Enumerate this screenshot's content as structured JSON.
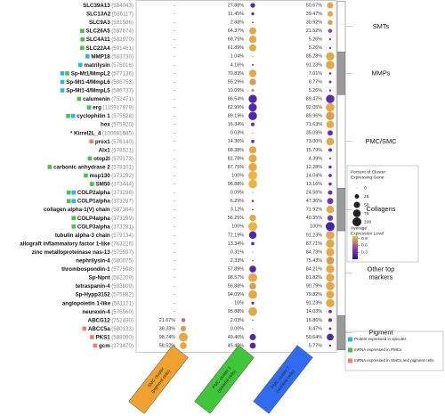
{
  "chart_data": {
    "type": "dotplot",
    "genes": [
      "SLC39A13",
      "SLC13A2",
      "SLC9A3",
      "SLC26A5",
      "SLC4A11",
      "SLC22A4",
      "MMP18",
      "matrilysin",
      "Sp-Mt1/MmpL2",
      "Sp-Mt1-4/MmpL6",
      "Sp-Mt1-4/MmpL5",
      "calumenin",
      "erg",
      "cyclophilin 1",
      "hex",
      "* Kirrel2L_4",
      "prox1",
      "Alx1",
      "otop2l",
      "carbonic anhydrase 2",
      "msp130",
      "SM50",
      "COLP2alpha",
      "COLP1alpha",
      "collagen alpha-1(V) chain",
      "COLP4alpha",
      "COLP3alpha",
      "tubulin alpha-3 chain",
      "allograft inflammatory factor 1-like",
      "zinc metalloproteinase nas-13",
      "nephrilysin-4",
      "thrombospondin-1",
      "Sp-Npnt",
      "tetraspanin-4",
      "Sp-Hypp3152",
      "angiopoietin 1-like",
      "neurexin-4",
      "ABCG12",
      "ABCC5a",
      "PKS1",
      "gcm"
    ],
    "gene_ids": [
      "(584043)",
      "(586117)",
      "(581586)",
      "(587674)",
      "(582970)",
      "(591461)",
      "(583730)",
      "(576016)",
      "(577136)",
      "(586753)",
      "(586737)",
      "(752471)",
      "(115917879)",
      "(575528)",
      "(575920)",
      "(100681685)",
      "(576140)",
      "(578521)",
      "(579173)",
      "(579101)",
      "(373292)",
      "(373444)",
      "(373298)",
      "(373287)",
      "(587384)",
      "(373299)",
      "(373281)",
      "(579134)",
      "(763226)",
      "(575597)",
      "(580075)",
      "(577598)",
      "(582209)",
      "(593809)",
      "(575882)",
      "(581121)",
      "(576560)",
      "(752490)",
      "(580133)",
      "(588090)",
      "(373470)"
    ],
    "row_tags": [
      [],
      [],
      [],
      [
        1
      ],
      [
        1
      ],
      [
        1
      ],
      [
        0
      ],
      [
        0
      ],
      [
        0,
        1
      ],
      [
        0
      ],
      [
        0
      ],
      [
        1
      ],
      [
        1
      ],
      [
        1,
        0
      ],
      [],
      [],
      [
        2
      ],
      [],
      [
        1
      ],
      [
        1
      ],
      [
        1
      ],
      [
        1
      ],
      [
        1,
        0
      ],
      [
        1,
        0
      ],
      [],
      [
        1
      ],
      [
        1
      ],
      [],
      [],
      [],
      [],
      [],
      [],
      [],
      [],
      [],
      [],
      [],
      [
        2
      ],
      [
        2
      ],
      [
        2
      ]
    ],
    "tag_legend": [
      {
        "name": "Protein expressed in spicules",
        "color": "#2bb5e6"
      },
      {
        "name": "mRNA expressed in PMCs",
        "color": "#4cbf4c"
      },
      {
        "name": "mRNA expressed in SMCs and pigment cells",
        "color": "#ef7f70"
      }
    ],
    "columns": [
      {
        "lines": [
          "SMC cluster",
          "(pigment cells)"
        ],
        "color": "#f0a22e",
        "values": [
          null,
          null,
          null,
          null,
          null,
          null,
          null,
          null,
          null,
          null,
          null,
          null,
          null,
          null,
          null,
          null,
          null,
          null,
          null,
          null,
          null,
          null,
          null,
          null,
          null,
          null,
          null,
          null,
          null,
          null,
          null,
          null,
          null,
          null,
          null,
          null,
          null,
          21.67,
          38.33,
          98.74,
          58.52
        ],
        "value_labels": [
          "-",
          "-",
          "-",
          "-",
          "-",
          "-",
          "-",
          "-",
          "-",
          "-",
          "-",
          "-",
          "-",
          "-",
          "-",
          "-",
          "-",
          "-",
          "-",
          "-",
          "-",
          "-",
          "-",
          "-",
          "-",
          "-",
          "-",
          "-",
          "-",
          "-",
          "-",
          "-",
          "-",
          "-",
          "-",
          "-",
          "-",
          "21.67%",
          "38.33%",
          "98.74%",
          "58.52%"
        ],
        "expression": [
          null,
          null,
          null,
          null,
          null,
          null,
          null,
          null,
          null,
          null,
          null,
          null,
          null,
          null,
          null,
          null,
          null,
          null,
          null,
          null,
          null,
          null,
          null,
          null,
          null,
          null,
          null,
          null,
          null,
          null,
          null,
          null,
          null,
          null,
          null,
          null,
          null,
          0.7,
          0.85,
          0.9,
          0.9
        ]
      },
      {
        "lines": [
          "PMC cluster 1",
          "(skeletal cells)"
        ],
        "color": "#3fc63a",
        "values": [
          27.88,
          11.45,
          2.88,
          64.37,
          68.75,
          61.89,
          1.04,
          4.16,
          70.83,
          55.29,
          10.09,
          86.54,
          82.99,
          89.19,
          16.34,
          0.03,
          14.3,
          68.38,
          81.78,
          87.75,
          100,
          96.88,
          0.09,
          6.29,
          3.12,
          56.25,
          100,
          72.19,
          13.34,
          0.31,
          2.33,
          57.89,
          98.57,
          56.88,
          94.09,
          10,
          95.88,
          2.03,
          0,
          49.4,
          45.4
        ],
        "value_labels": [
          "27.88%",
          "11.45%",
          "2.88%",
          "64.37%",
          "68.75%",
          "61.89%",
          "1.04%",
          "4.16%",
          "70.83%",
          "55.29%",
          "10.09%",
          "86.54%",
          "82.99%",
          "89.19%",
          "16.34%",
          "0.03%",
          "14.30%",
          "68.38%",
          "81.78%",
          "87.75%",
          "100%",
          "96.88%",
          "0.09%",
          "6.29%",
          "3.12%",
          "56.25%",
          "100%",
          "72.19%",
          "13.34%",
          "0.31%",
          "2.33%",
          "57.89%",
          "98.57%",
          "56.88%",
          "94.09%",
          "10%",
          "95.88%",
          "2.03%",
          "0.00%",
          "49.40%",
          "45.40%"
        ],
        "expression": [
          0.2,
          0.25,
          0.3,
          0.9,
          0.9,
          0.9,
          0.3,
          0.3,
          0.9,
          0.85,
          0.8,
          0.2,
          0.2,
          0.2,
          0.3,
          0.3,
          0.3,
          0.9,
          0.9,
          0.9,
          0.95,
          0.95,
          0.3,
          0.3,
          0.3,
          0.9,
          0.95,
          0.2,
          0.2,
          0.3,
          0.3,
          0.2,
          0.9,
          0.85,
          0.9,
          0.3,
          0.9,
          0.3,
          0.3,
          0.2,
          0.2
        ]
      },
      {
        "lines": [
          "PMC cluster 2",
          "(skeletal cells)"
        ],
        "color": "#2f6cf0",
        "values": [
          50.67,
          39.47,
          30.92,
          21.52,
          5.26,
          5.26,
          85.28,
          91.23,
          7.01,
          8.77,
          5.26,
          89.47,
          92.05,
          89.96,
          71.63,
          35.09,
          73.0,
          15.79,
          4.39,
          12.28,
          14.04,
          13.16,
          24.56,
          47.36,
          71.92,
          40.35,
          100,
          91.23,
          87.71,
          84.73,
          75.43,
          84.21,
          81.82,
          90.79,
          79.82,
          91.23,
          14.03,
          16.86,
          8.47,
          59.64,
          5.77
        ],
        "value_labels": [
          "50.67%",
          "39.47%",
          "30.92%",
          "21.52%",
          "5.26%",
          "5.26%",
          "85.28%",
          "91.23%",
          "7.01%",
          "8.77%",
          "5.26%",
          "89.47%",
          "92.05%",
          "89.96%",
          "71.63%",
          "35.09%",
          "73.00%",
          "15.79%",
          "4.39%",
          "12.28%",
          "14.04%",
          "13.16%",
          "24.56%",
          "47.36%",
          "71.92%",
          "40.35%",
          "100%",
          "91.23%",
          "87.71%",
          "84.73%",
          "75.43%",
          "84.21%",
          "81.82%",
          "90.79%",
          "79.82%",
          "91.23%",
          "14.03%",
          "16.86%",
          "8.47%",
          "59.64%",
          "5.77%"
        ],
        "expression": [
          0.9,
          0.9,
          0.85,
          0.5,
          0.3,
          0.3,
          0.9,
          0.9,
          0.3,
          0.3,
          0.3,
          0.25,
          0.9,
          0.85,
          0.9,
          0.3,
          0.9,
          0.3,
          0.3,
          0.3,
          0.3,
          0.3,
          0.3,
          0.35,
          0.9,
          0.4,
          0.15,
          0.9,
          0.9,
          0.9,
          0.85,
          0.9,
          0.9,
          0.9,
          0.9,
          0.9,
          0.3,
          0.3,
          0.3,
          0.2,
          0.2
        ]
      }
    ],
    "groups": [
      {
        "lines": [
          "SMTs"
        ],
        "rows": [
          0,
          5
        ]
      },
      {
        "lines": [
          "MMPs"
        ],
        "rows": [
          6,
          10
        ]
      },
      {
        "lines": [
          "PMC/SMC"
        ],
        "rows": [
          11,
          21
        ]
      },
      {
        "lines": [
          "Collagens"
        ],
        "rows": [
          22,
          26
        ]
      },
      {
        "lines": [
          "Other top",
          "markers"
        ],
        "rows": [
          27,
          36
        ]
      },
      {
        "lines": [
          "Pigment"
        ],
        "rows": [
          37,
          40
        ]
      }
    ],
    "size_legend": {
      "lines": [
        "Percent of Cluster",
        "Expressing Gene"
      ],
      "values": [
        0,
        25,
        50,
        75,
        100
      ]
    },
    "color_legend": {
      "lines": [
        "Average",
        "Expression Level"
      ],
      "lim": [
        0,
        1
      ],
      "ticks": [
        0.3,
        0.6,
        0.9
      ],
      "colors": [
        "#1d18b5",
        "#9a3fa6",
        "#f6c22e"
      ]
    }
  }
}
